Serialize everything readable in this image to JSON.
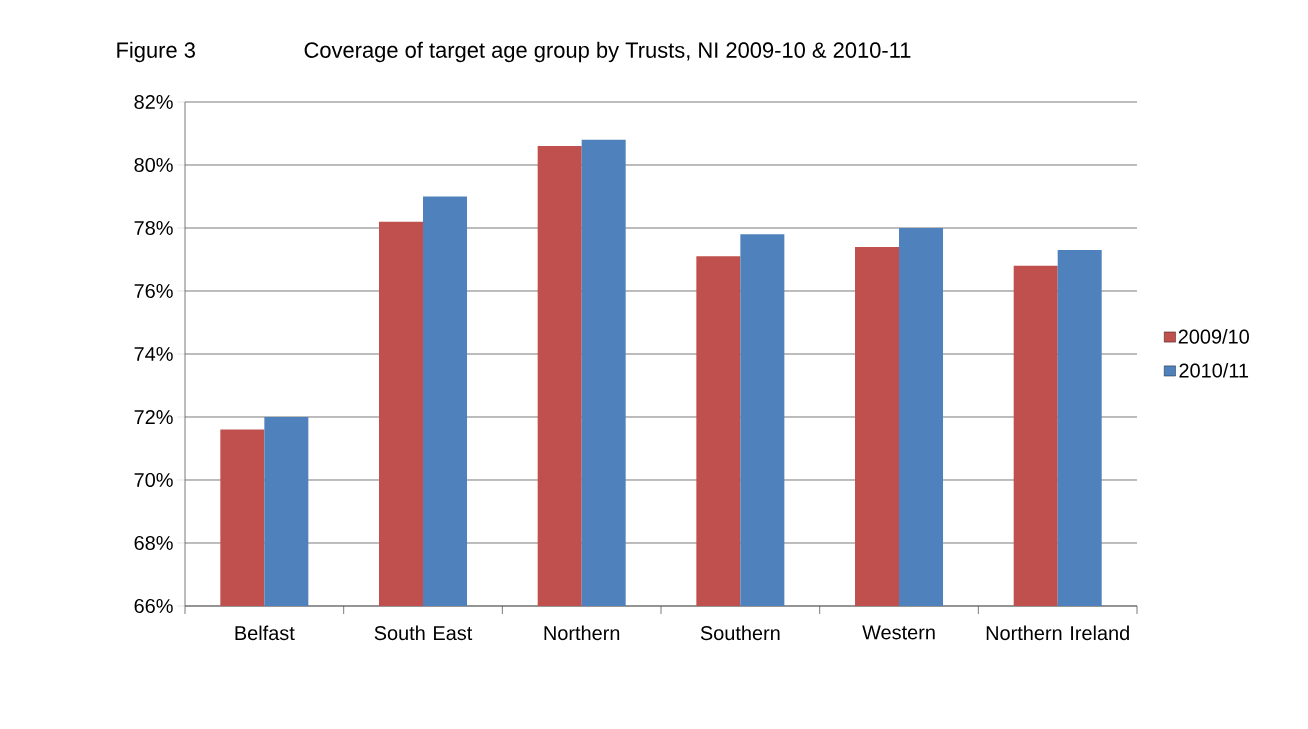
{
  "chart_data": {
    "type": "bar",
    "title": "Coverage of target age group by  Trusts, NI 2009-10  & 2010-11",
    "annotations": [
      "Figure 3"
    ],
    "categories": [
      "Belfast",
      "South East",
      "Northern",
      "Southern",
      "Western",
      "Northern Ireland"
    ],
    "series": [
      {
        "name": "2009/10",
        "color": "#c0504d",
        "values": [
          71.6,
          78.2,
          80.6,
          77.1,
          77.4,
          76.8
        ]
      },
      {
        "name": "2010/11",
        "color": "#4f81bd",
        "values": [
          72.0,
          79.0,
          80.8,
          77.8,
          78.0,
          77.3
        ]
      }
    ],
    "ylim": [
      66,
      82
    ],
    "yticks": [
      {
        "value": 66,
        "label": "66%"
      },
      {
        "value": 68,
        "label": "68%"
      },
      {
        "value": 70,
        "label": "70%"
      },
      {
        "value": 72,
        "label": "72%"
      },
      {
        "value": 74,
        "label": "74%"
      },
      {
        "value": 76,
        "label": "76%"
      },
      {
        "value": 78,
        "label": "78%"
      },
      {
        "value": 80,
        "label": "80%"
      },
      {
        "value": 82,
        "label": "82%"
      }
    ],
    "grid": "y",
    "legend": "right"
  }
}
